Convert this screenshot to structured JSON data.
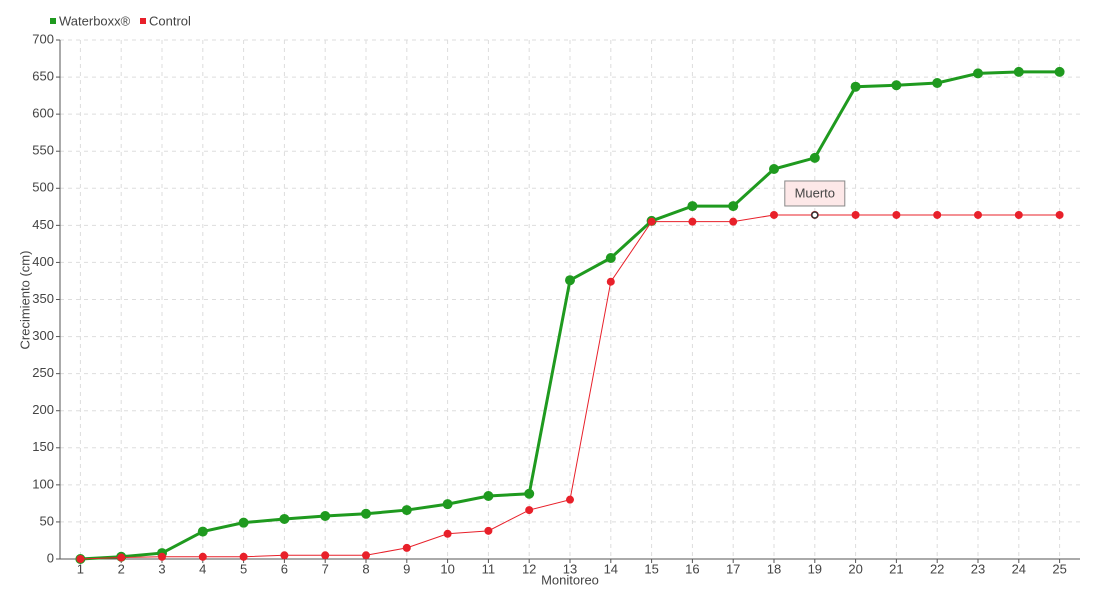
{
  "chart_data": {
    "type": "line",
    "x_label": "Monitoreo",
    "y_label": "Crecimiento (cm)",
    "x": [
      1,
      2,
      3,
      4,
      5,
      6,
      7,
      8,
      9,
      10,
      11,
      12,
      13,
      14,
      15,
      16,
      17,
      18,
      19,
      20,
      21,
      22,
      23,
      24,
      25
    ],
    "xlim": [
      0.5,
      25.5
    ],
    "xticks": [
      1,
      2,
      3,
      4,
      5,
      6,
      7,
      8,
      9,
      10,
      11,
      12,
      13,
      14,
      15,
      16,
      17,
      18,
      19,
      20,
      21,
      22,
      23,
      24,
      25
    ],
    "ylim": [
      0,
      700
    ],
    "yticks": [
      0,
      50,
      100,
      150,
      200,
      250,
      300,
      350,
      400,
      450,
      500,
      550,
      600,
      650,
      700
    ],
    "grid": true,
    "legend": "top-left",
    "series": [
      {
        "name": "Waterboxx®",
        "color": "#1f9a1f",
        "values": [
          0,
          3,
          8,
          37,
          49,
          54,
          58,
          61,
          66,
          74,
          85,
          88,
          376,
          406,
          456,
          476,
          476,
          526,
          541,
          637,
          639,
          642,
          655,
          657,
          657
        ]
      },
      {
        "name": "Control",
        "color": "#e8202a",
        "values": [
          0,
          2,
          3,
          3,
          3,
          5,
          5,
          5,
          15,
          34,
          38,
          66,
          80,
          374,
          455,
          455,
          455,
          464,
          464,
          464,
          464,
          464,
          464,
          464,
          464
        ]
      }
    ],
    "annotations": [
      {
        "text": "Muerto",
        "x": 19,
        "y": 464
      }
    ]
  }
}
